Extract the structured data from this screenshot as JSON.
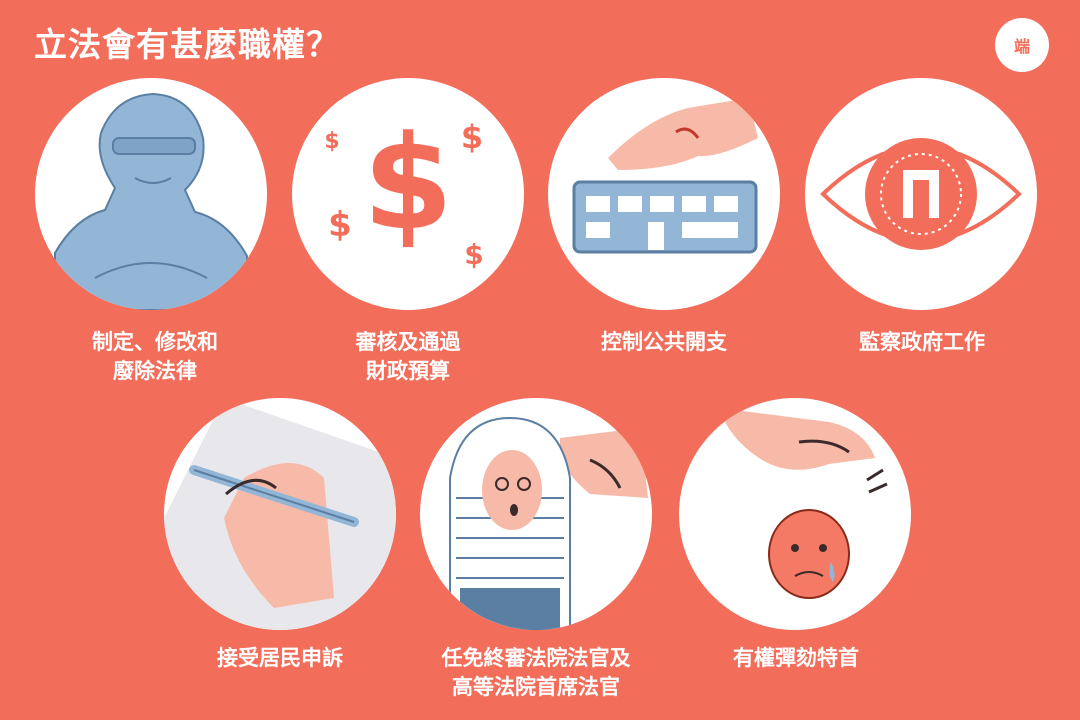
{
  "title": "立法會有甚麼職權？",
  "logo": {
    "text": "端",
    "icon": "initium-logo-icon"
  },
  "colors": {
    "background": "#f26e5b",
    "circle": "#ffffff",
    "accent_blue": "#93b6d6",
    "skin": "#f7b9a8"
  },
  "powers": [
    {
      "lines": [
        "制定、修改和",
        "廢除法律"
      ],
      "icon": "justice-statue-icon"
    },
    {
      "lines": [
        "審核及通過",
        "財政預算"
      ],
      "icon": "dollar-signs-icon"
    },
    {
      "lines": [
        "控制公共開支"
      ],
      "icon": "pointing-hand-tram-icon"
    },
    {
      "lines": [
        "監察政府工作"
      ],
      "icon": "eye-icon"
    },
    {
      "lines": [
        "接受居民申訴"
      ],
      "icon": "hand-writing-icon"
    },
    {
      "lines": [
        "任免終審法院法官及",
        "高等法院首席法官"
      ],
      "icon": "judge-icon"
    },
    {
      "lines": [
        "有權彈劾特首"
      ],
      "icon": "flicking-hand-icon"
    }
  ]
}
